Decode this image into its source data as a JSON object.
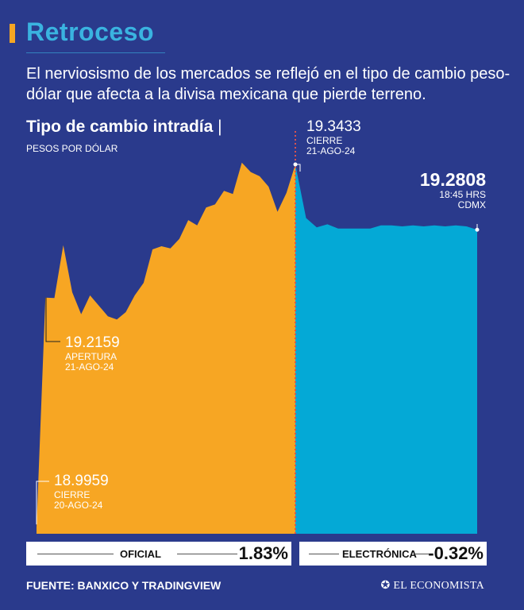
{
  "header": {
    "title": "Retroceso",
    "intro": "El nerviosismo de los mercados se reflejó en el tipo de cambio peso-dólar que afecta a la divisa mexicana que pierde terreno."
  },
  "chart_data": {
    "type": "area",
    "title": "Tipo de cambio intradía",
    "subtitle": "PESOS POR DÓLAR",
    "ylim": [
      18.99,
      19.36
    ],
    "series": [
      {
        "name": "Oficial",
        "color": "#f7a623",
        "values": [
          18.9959,
          19.2159,
          19.2155,
          19.266,
          19.221,
          19.2,
          19.218,
          19.208,
          19.198,
          19.195,
          19.202,
          19.218,
          19.23,
          19.262,
          19.265,
          19.263,
          19.272,
          19.29,
          19.285,
          19.302,
          19.305,
          19.318,
          19.315,
          19.345,
          19.336,
          19.332,
          19.322,
          19.298,
          19.316,
          19.3433
        ]
      },
      {
        "name": "Electrónica",
        "color": "#04a9d6",
        "values": [
          19.3433,
          19.292,
          19.283,
          19.286,
          19.282,
          19.282,
          19.282,
          19.282,
          19.285,
          19.285,
          19.284,
          19.285,
          19.284,
          19.285,
          19.284,
          19.285,
          19.284,
          19.2808
        ]
      }
    ],
    "annotations": [
      {
        "value": "19.2159",
        "label1": "APERTURA",
        "label2": "21-AGO-24"
      },
      {
        "value": "18.9959",
        "label1": "CIERRE",
        "label2": "20-AGO-24"
      },
      {
        "value": "19.3433",
        "label1": "CIERRE",
        "label2": "21-AGO-24"
      },
      {
        "value": "19.2808",
        "label1": "18:45 HRS",
        "label2": "CDMX"
      }
    ]
  },
  "summary": {
    "oficial_label": "OFICIAL",
    "oficial_pct": "1.83%",
    "electronica_label": "ELECTRÓNICA",
    "electronica_pct": "-0.32%"
  },
  "footer": {
    "source": "FUENTE: BANXICO Y TRADINGVIEW",
    "brand": "EL ECONOMISTA"
  },
  "colors": {
    "background": "#2a3a8c",
    "accent": "#f5a623",
    "title": "#3ab3e0"
  }
}
